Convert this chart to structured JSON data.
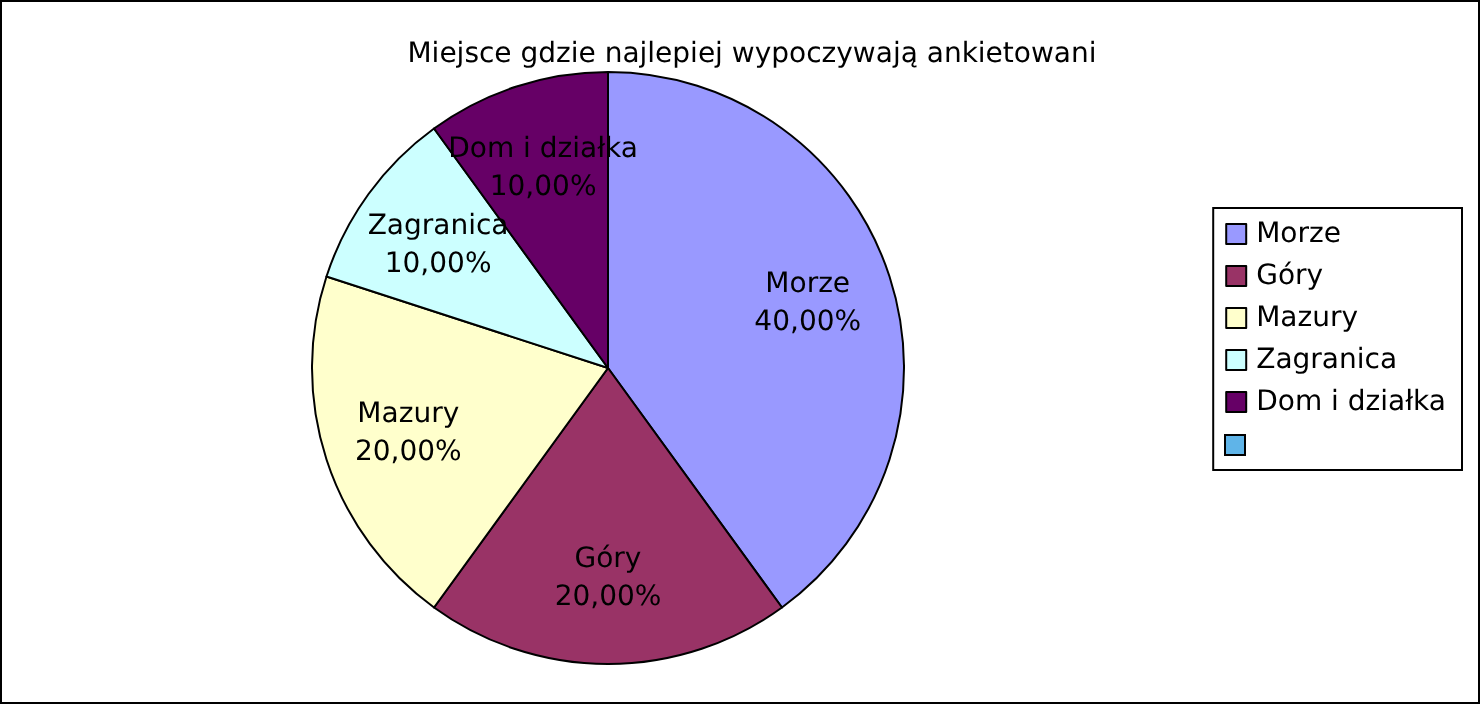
{
  "chart_data": {
    "type": "pie",
    "title": "Miejsce gdzie najlepiej wypoczywają ankietowani",
    "categories": [
      "Morze",
      "Góry",
      "Mazury",
      "Zagranica",
      "Dom i działka"
    ],
    "values": [
      40,
      20,
      20,
      10,
      10
    ],
    "value_labels": [
      "40,00%",
      "20,00%",
      "20,00%",
      "10,00%",
      "10,00%"
    ],
    "colors": [
      "#9999ff",
      "#993366",
      "#ffffcc",
      "#ccffff",
      "#660066"
    ],
    "legend": "right"
  }
}
